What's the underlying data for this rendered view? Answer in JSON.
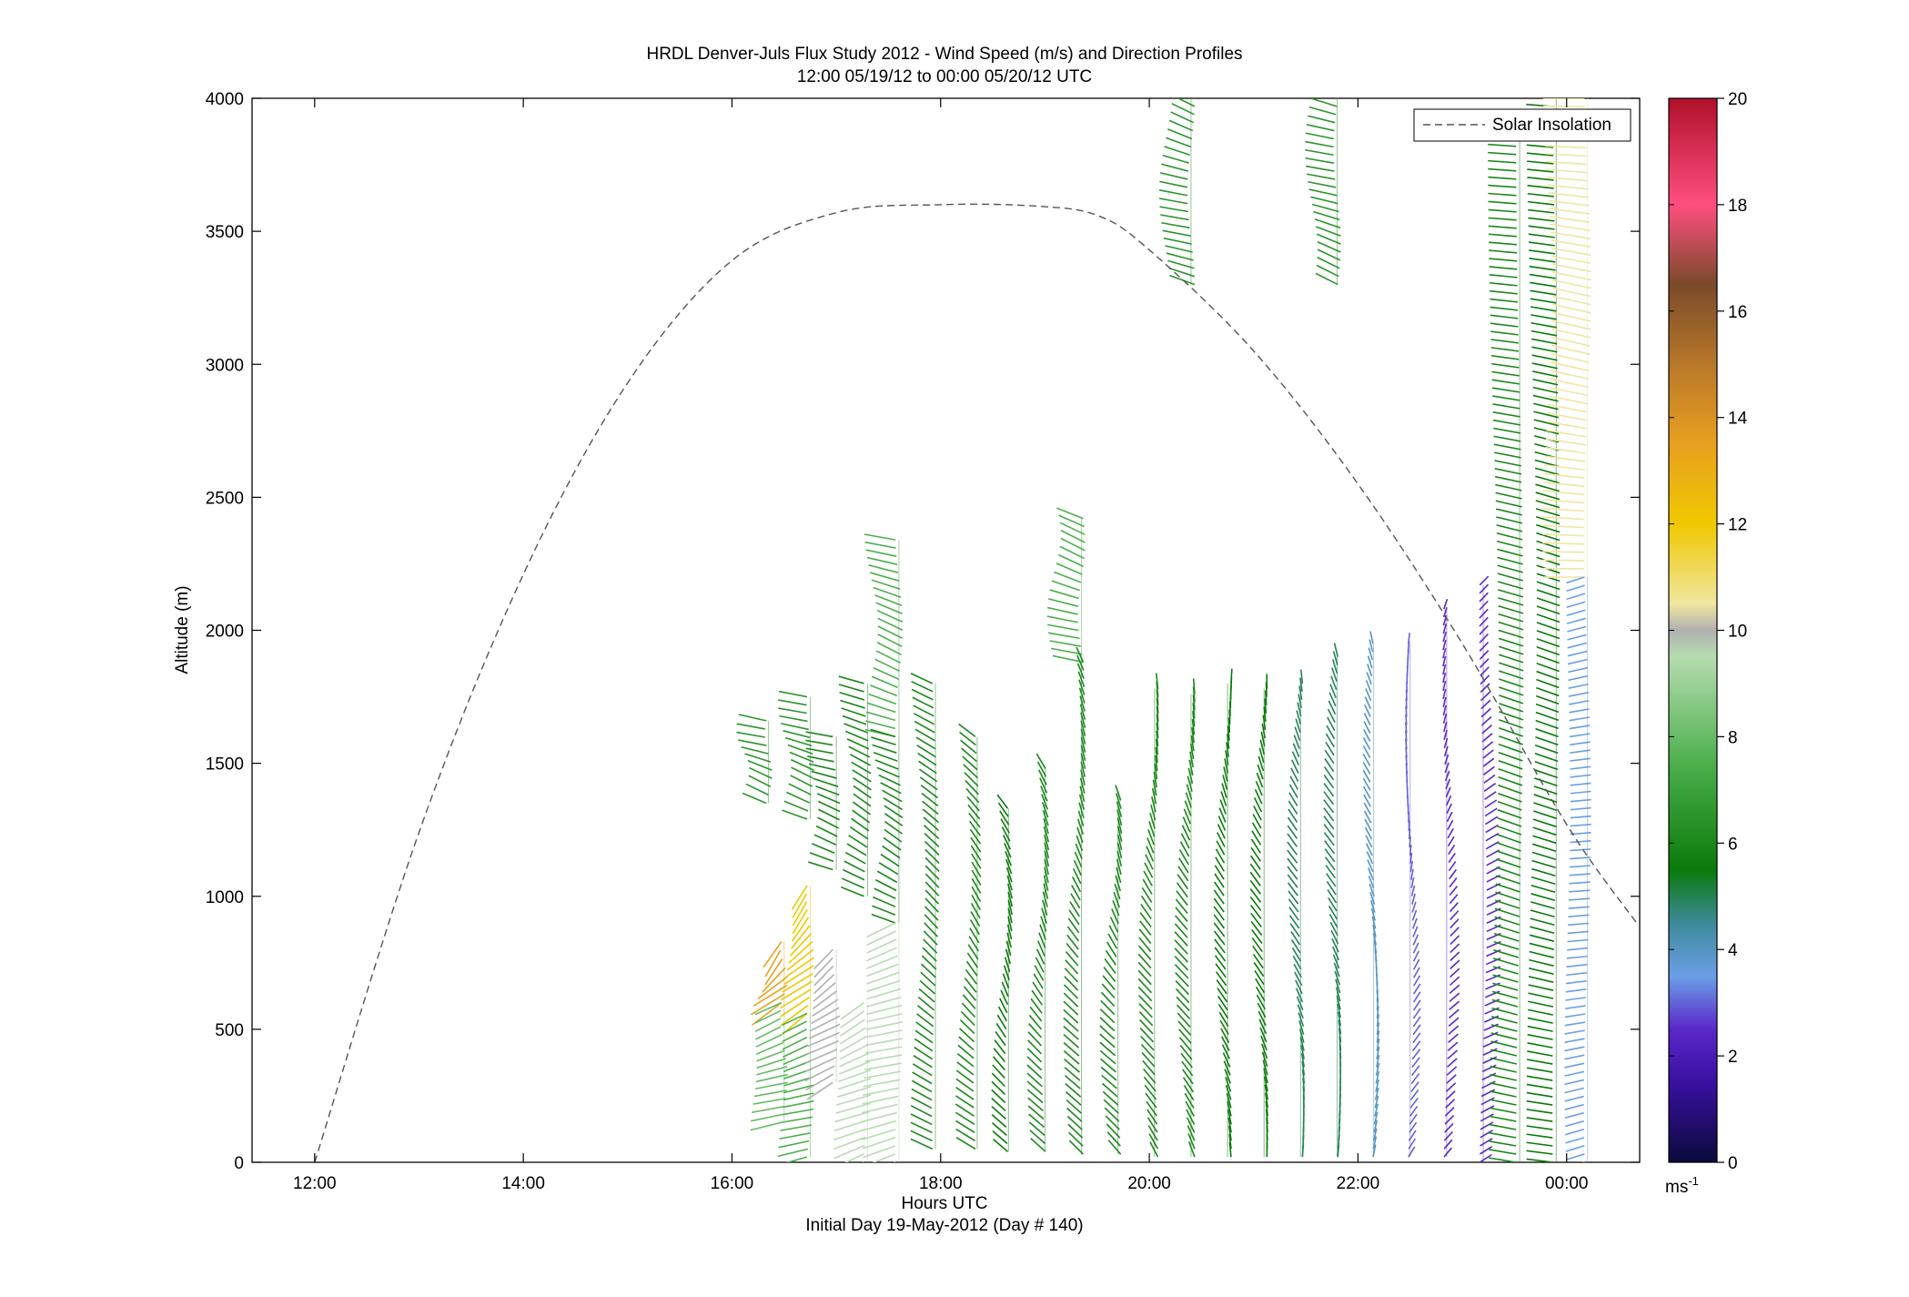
{
  "figure": {
    "title_line1": "HRDL Denver-Juls Flux Study 2012 - Wind Speed (m/s) and Direction Profiles",
    "title_line2": "12:00 05/19/12 to 00:00 05/20/12  UTC",
    "xlabel": "Hours UTC",
    "xlabel_sub": "Initial Day 19-May-2012 (Day # 140)",
    "ylabel": "Altitude (m)",
    "legend_label": "Solar Insolation",
    "colorbar_unit": "ms",
    "colorbar_unit_exp": "-1"
  },
  "chart_data": {
    "type": "wind-barb profile",
    "x_unit": "hours UTC",
    "xlim": [
      11.4,
      24.7
    ],
    "ylim": [
      0,
      4000
    ],
    "xticks": [
      {
        "value": 12,
        "label": "12:00"
      },
      {
        "value": 14,
        "label": "14:00"
      },
      {
        "value": 16,
        "label": "16:00"
      },
      {
        "value": 18,
        "label": "18:00"
      },
      {
        "value": 20,
        "label": "20:00"
      },
      {
        "value": 22,
        "label": "22:00"
      },
      {
        "value": 24,
        "label": "00:00"
      }
    ],
    "yticks": [
      0,
      500,
      1000,
      1500,
      2000,
      2500,
      3000,
      3500,
      4000
    ],
    "legend_placement": "top-right",
    "grid": false,
    "colorbar": {
      "min": 0,
      "max": 20,
      "ticks": [
        0,
        2,
        4,
        6,
        8,
        10,
        12,
        14,
        16,
        18,
        20
      ],
      "stops": [
        {
          "v": 0,
          "color": "#0a0a3c"
        },
        {
          "v": 1.5,
          "color": "#3a10a0"
        },
        {
          "v": 2.5,
          "color": "#5a28c8"
        },
        {
          "v": 3.5,
          "color": "#6a9ee6"
        },
        {
          "v": 4.5,
          "color": "#3d8a9a"
        },
        {
          "v": 5.5,
          "color": "#0a7a0a"
        },
        {
          "v": 7.5,
          "color": "#4caf4c"
        },
        {
          "v": 9.5,
          "color": "#b6dcb0"
        },
        {
          "v": 10,
          "color": "#b0b0b0"
        },
        {
          "v": 10.5,
          "color": "#f0e6a0"
        },
        {
          "v": 12,
          "color": "#f0c800"
        },
        {
          "v": 13.5,
          "color": "#e8a020"
        },
        {
          "v": 15,
          "color": "#b8782a"
        },
        {
          "v": 16.5,
          "color": "#7a4a2a"
        },
        {
          "v": 18,
          "color": "#ff4f80"
        },
        {
          "v": 20,
          "color": "#b0102a"
        }
      ]
    },
    "solar_insolation": {
      "style": "dashed",
      "color": "#555555",
      "x": [
        12.0,
        13.0,
        14.0,
        15.0,
        16.0,
        17.0,
        18.0,
        18.9,
        19.5,
        20.0,
        21.0,
        22.0,
        23.0,
        24.0,
        24.67
      ],
      "y": [
        0,
        1240,
        2210,
        2930,
        3390,
        3570,
        3600,
        3595,
        3560,
        3430,
        3050,
        2550,
        1950,
        1270,
        900
      ]
    },
    "profiles": [
      {
        "x": 16.35,
        "top": 1660,
        "bottom": 1350,
        "speed": 6.5,
        "dir": 300
      },
      {
        "x": 16.5,
        "top": 830,
        "bottom": 600,
        "speed": 13.5,
        "dir": 210
      },
      {
        "x": 16.5,
        "top": 600,
        "bottom": 150,
        "speed": 8,
        "dir": 240
      },
      {
        "x": 16.75,
        "top": 1750,
        "bottom": 1290,
        "speed": 6.5,
        "dir": 300
      },
      {
        "x": 16.75,
        "top": 1040,
        "bottom": 560,
        "speed": 12,
        "dir": 210
      },
      {
        "x": 16.75,
        "top": 560,
        "bottom": 20,
        "speed": 7.5,
        "dir": 240
      },
      {
        "x": 17.0,
        "top": 1600,
        "bottom": 1100,
        "speed": 6,
        "dir": 300
      },
      {
        "x": 17.0,
        "top": 800,
        "bottom": 300,
        "speed": 10,
        "dir": 220
      },
      {
        "x": 17.3,
        "top": 1800,
        "bottom": 1000,
        "speed": 6,
        "dir": 310
      },
      {
        "x": 17.3,
        "top": 600,
        "bottom": 0,
        "speed": 9.5,
        "dir": 230
      },
      {
        "x": 17.6,
        "top": 2340,
        "bottom": 1600,
        "speed": 7.5,
        "dir": 300
      },
      {
        "x": 17.6,
        "top": 1600,
        "bottom": 900,
        "speed": 6,
        "dir": 310
      },
      {
        "x": 17.6,
        "top": 900,
        "bottom": 0,
        "speed": 9.5,
        "dir": 240
      },
      {
        "x": 17.95,
        "top": 1800,
        "bottom": 50,
        "speed": 6,
        "dir": 320
      },
      {
        "x": 18.35,
        "top": 1600,
        "bottom": 50,
        "speed": 6,
        "dir": 330
      },
      {
        "x": 18.65,
        "top": 1330,
        "bottom": 40,
        "speed": 5.5,
        "dir": 340
      },
      {
        "x": 19.0,
        "top": 1480,
        "bottom": 40,
        "speed": 6,
        "dir": 340
      },
      {
        "x": 19.35,
        "top": 2420,
        "bottom": 1880,
        "speed": 7.5,
        "dir": 300
      },
      {
        "x": 19.35,
        "top": 1880,
        "bottom": 30,
        "speed": 6,
        "dir": 340
      },
      {
        "x": 19.7,
        "top": 1360,
        "bottom": 30,
        "speed": 6,
        "dir": 340
      },
      {
        "x": 20.05,
        "top": 1780,
        "bottom": 20,
        "speed": 6,
        "dir": 345
      },
      {
        "x": 20.4,
        "top": 4000,
        "bottom": 3300,
        "speed": 6.5,
        "dir": 300
      },
      {
        "x": 20.4,
        "top": 1760,
        "bottom": 20,
        "speed": 6,
        "dir": 345
      },
      {
        "x": 20.75,
        "top": 1800,
        "bottom": 20,
        "speed": 5.5,
        "dir": 350
      },
      {
        "x": 21.1,
        "top": 1780,
        "bottom": 20,
        "speed": 5.5,
        "dir": 350
      },
      {
        "x": 21.45,
        "top": 1800,
        "bottom": 20,
        "speed": 5,
        "dir": 350
      },
      {
        "x": 21.8,
        "top": 4000,
        "bottom": 3300,
        "speed": 6.5,
        "dir": 300
      },
      {
        "x": 21.8,
        "top": 1900,
        "bottom": 20,
        "speed": 5,
        "dir": 350
      },
      {
        "x": 22.15,
        "top": 1950,
        "bottom": 20,
        "speed": 4,
        "dir": 355
      },
      {
        "x": 22.5,
        "top": 1950,
        "bottom": 20,
        "speed": 3,
        "dir": 10
      },
      {
        "x": 22.85,
        "top": 2080,
        "bottom": 20,
        "speed": 2.5,
        "dir": 20
      },
      {
        "x": 23.2,
        "top": 2170,
        "bottom": 0,
        "speed": 2.5,
        "dir": 40
      },
      {
        "x": 23.55,
        "top": 3850,
        "bottom": 0,
        "speed": 6,
        "dir": 290
      },
      {
        "x": 23.9,
        "top": 4000,
        "bottom": 0,
        "speed": 5.5,
        "dir": 290
      },
      {
        "x": 24.2,
        "top": 4000,
        "bottom": 2200,
        "speed": 10.5,
        "dir": 280
      },
      {
        "x": 24.2,
        "top": 2200,
        "bottom": 0,
        "speed": 3.5,
        "dir": 250
      }
    ]
  }
}
